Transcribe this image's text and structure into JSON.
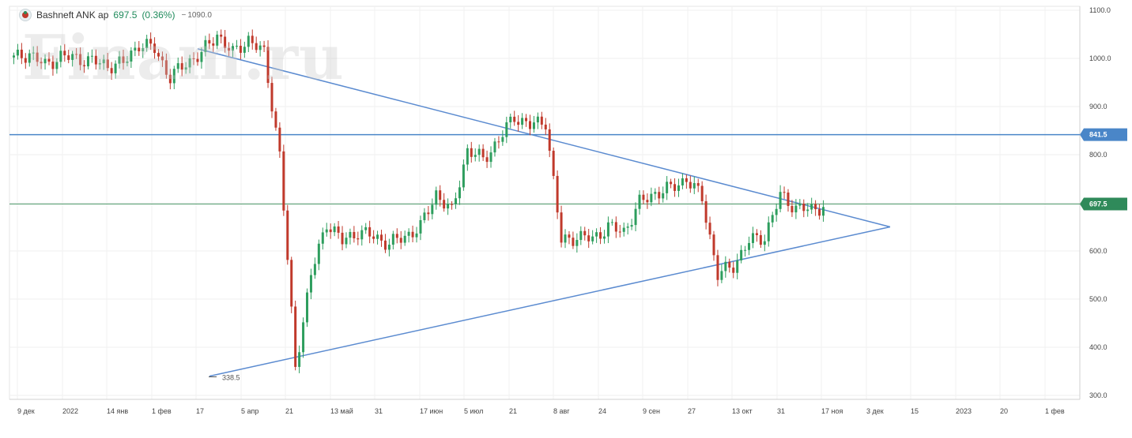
{
  "header": {
    "ticker": "Bashneft ANK ap",
    "price": "697.5",
    "change": "(0.36%)",
    "extra": "1090.0"
  },
  "watermark": "Finam.ru",
  "colors": {
    "up": "#2e9e5e",
    "down": "#c0392b",
    "trend_line": "#5b8bd0",
    "resistance_line": "#4a86c8",
    "last_price_line": "#4f9a6b",
    "resistance_badge": "#4a86c8",
    "last_price_badge": "#2f8a5a"
  },
  "chart_data": {
    "type": "candlestick",
    "x_tick_labels": [
      "9 дек",
      "2022",
      "14 янв",
      "1 фев",
      "17",
      "5 апр",
      "21",
      "13 май",
      "31",
      "17 июн",
      "5 июл",
      "21",
      "8 авг",
      "24",
      "9 сен",
      "27",
      "13 окт",
      "31",
      "17 ноя",
      "3 дек",
      "15",
      "2023",
      "20",
      "1 фев"
    ],
    "y_tick_labels": [
      "1100.0",
      "1000.0",
      "900.0",
      "800.0",
      "700.0",
      "600.0",
      "500.0",
      "400.0",
      "300.0"
    ],
    "ylim": [
      300,
      1100
    ],
    "grid": true,
    "resistance_label": "841.5",
    "last_price_label": "697.5",
    "low_annotation": "338.5",
    "triangle": {
      "upper_start": 1020,
      "lower_start": 340,
      "apex": 650
    },
    "price_path": [
      [
        1035,
        1000
      ],
      [
        980,
        1010
      ],
      [
        1000,
        985
      ],
      [
        995,
        1005
      ],
      [
        1010,
        1000
      ],
      [
        1000,
        995
      ],
      [
        1030,
        985
      ],
      [
        980,
        990
      ],
      [
        1060,
        1030
      ],
      [
        1080,
        1020
      ],
      [
        1010,
        960
      ],
      [
        1000,
        990
      ],
      [
        1030,
        1010
      ],
      [
        1090,
        1050
      ],
      [
        1000,
        1010
      ],
      [
        1050,
        1040
      ],
      [
        1050,
        1010
      ],
      [
        950,
        800
      ],
      [
        780,
        360
      ],
      [
        550,
        550
      ],
      [
        640,
        660
      ],
      [
        650,
        620
      ],
      [
        670,
        640
      ],
      [
        650,
        630
      ],
      [
        620,
        615
      ],
      [
        640,
        630
      ],
      [
        660,
        650
      ],
      [
        740,
        720
      ],
      [
        720,
        680
      ],
      [
        830,
        810
      ],
      [
        760,
        790
      ],
      [
        820,
        830
      ],
      [
        880,
        880
      ],
      [
        850,
        860
      ],
      [
        855,
        870
      ],
      [
        740,
        620
      ],
      [
        650,
        630
      ],
      [
        620,
        625
      ],
      [
        660,
        650
      ],
      [
        630,
        640
      ],
      [
        680,
        700
      ],
      [
        710,
        720
      ],
      [
        740,
        730
      ],
      [
        760,
        750
      ],
      [
        730,
        710
      ],
      [
        550,
        550
      ],
      [
        560,
        570
      ],
      [
        600,
        620
      ],
      [
        620,
        630
      ],
      [
        700,
        715
      ],
      [
        700,
        690
      ],
      [
        690,
        685
      ],
      [
        680,
        697.5
      ]
    ]
  }
}
